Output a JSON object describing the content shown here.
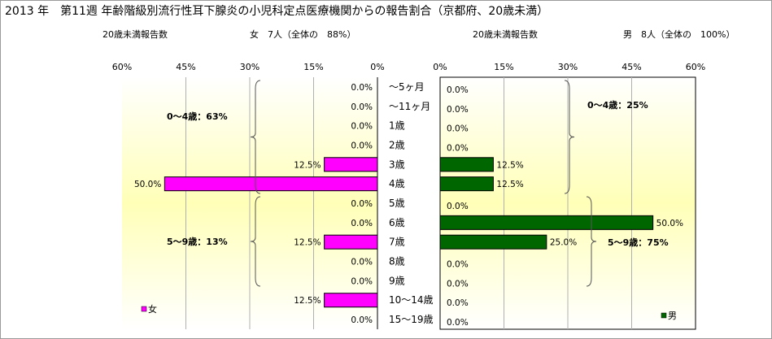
{
  "title": "2013 年　第11週 年齢階級別流行性耳下腺炎の小児科定点医療機関からの報告割合（京都府、20歳未満）",
  "female": {
    "header_label": "20歳未満報告数",
    "header_count": "女　7人（全体の　88%）",
    "legend": "女",
    "group_labels": [
      "0～4歳：63%",
      "5～9歳：13%"
    ],
    "color": "#ff00ff"
  },
  "male": {
    "header_label": "20歳未満報告数",
    "header_count": "男　8人（全体の　100%）",
    "legend": "男",
    "group_labels": [
      "0～4歳：25%",
      "5～9歳：75%"
    ],
    "color": "#006600"
  },
  "chart_data": {
    "type": "bar",
    "orientation": "horizontal",
    "layout": "population-pyramid",
    "categories": [
      "～5ヶ月",
      "～11ヶ月",
      "1歳",
      "2歳",
      "3歳",
      "4歳",
      "5歳",
      "6歳",
      "7歳",
      "8歳",
      "9歳",
      "10～14歳",
      "15～19歳"
    ],
    "x_ticks": [
      "60%",
      "45%",
      "30%",
      "15%",
      "0%"
    ],
    "x_ticks_right": [
      "0%",
      "15%",
      "30%",
      "45%",
      "60%"
    ],
    "xlim": [
      0,
      60
    ],
    "series": [
      {
        "name": "女",
        "values": [
          0.0,
          0.0,
          0.0,
          0.0,
          12.5,
          50.0,
          0.0,
          0.0,
          12.5,
          0.0,
          0.0,
          12.5,
          0.0
        ],
        "labels": [
          "0.0%",
          "0.0%",
          "0.0%",
          "0.0%",
          "12.5%",
          "50.0%",
          "0.0%",
          "0.0%",
          "12.5%",
          "0.0%",
          "0.0%",
          "12.5%",
          "0.0%"
        ]
      },
      {
        "name": "男",
        "values": [
          0.0,
          0.0,
          0.0,
          0.0,
          12.5,
          12.5,
          0.0,
          50.0,
          25.0,
          0.0,
          0.0,
          0.0,
          0.0
        ],
        "labels": [
          "0.0%",
          "0.0%",
          "0.0%",
          "0.0%",
          "12.5%",
          "12.5%",
          "0.0%",
          "50.0%",
          "25.0%",
          "0.0%",
          "0.0%",
          "0.0%",
          "0.0%"
        ]
      }
    ],
    "grid": true,
    "legend_position": "bottom-inside"
  }
}
